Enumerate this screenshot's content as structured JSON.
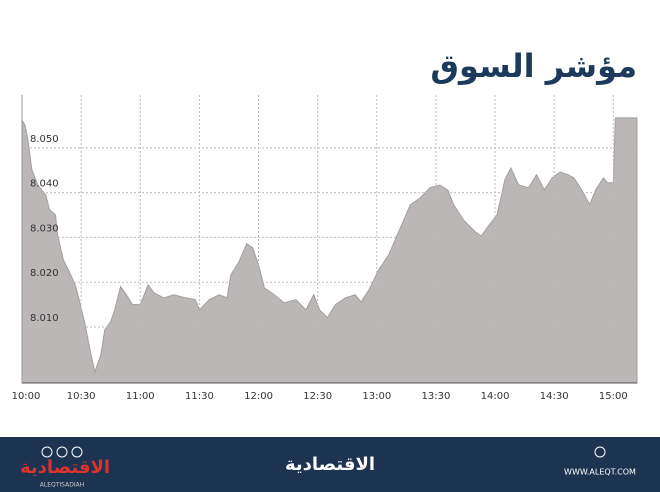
{
  "chart_data": {
    "type": "area",
    "title": "مؤشر السوق",
    "x": [
      600,
      601.5,
      603,
      605,
      608,
      612,
      614,
      617,
      618,
      621,
      624,
      627,
      629,
      632,
      635,
      637,
      640,
      642,
      645,
      647,
      650,
      653,
      656,
      660,
      664,
      667,
      672,
      677,
      683,
      688,
      690,
      695,
      700,
      704,
      706,
      710,
      714,
      717,
      720,
      723,
      728,
      733,
      739,
      744,
      748,
      751,
      755,
      759,
      764,
      769,
      772,
      776,
      781,
      786,
      791,
      797,
      802,
      807,
      812,
      816,
      819,
      824,
      830,
      833,
      837,
      841,
      845,
      848,
      852,
      857,
      861,
      865,
      869,
      873,
      877,
      880,
      884,
      888,
      891,
      895,
      897,
      900,
      901,
      912
    ],
    "values": [
      8.0562,
      8.0551,
      8.0518,
      8.0451,
      8.0417,
      8.0395,
      8.0362,
      8.035,
      8.0306,
      8.025,
      8.0223,
      8.0194,
      8.0161,
      8.0105,
      8.0038,
      8.0,
      8.0038,
      8.0094,
      8.0112,
      8.0138,
      8.019,
      8.0172,
      8.015,
      8.015,
      8.0194,
      8.0176,
      8.0165,
      8.0172,
      8.0165,
      8.0161,
      8.0138,
      8.0161,
      8.0172,
      8.0165,
      8.0217,
      8.0245,
      8.0286,
      8.0277,
      8.0239,
      8.0187,
      8.0172,
      8.0154,
      8.0161,
      8.0138,
      8.0172,
      8.0138,
      8.0121,
      8.015,
      8.0165,
      8.0172,
      8.0156,
      8.0183,
      8.0228,
      8.0261,
      8.0312,
      8.0373,
      8.0388,
      8.0411,
      8.0417,
      8.0406,
      8.0373,
      8.0339,
      8.0312,
      8.0303,
      8.0328,
      8.035,
      8.0429,
      8.0455,
      8.0417,
      8.0411,
      8.044,
      8.0406,
      8.0433,
      8.0446,
      8.044,
      8.0433,
      8.0406,
      8.0373,
      8.0406,
      8.0433,
      8.0422,
      8.0422,
      8.0567,
      8.0567
    ],
    "color": "#bcb7b7",
    "xlim": [
      600,
      912
    ],
    "xticks": [
      {
        "value": 600,
        "label": "10:00"
      },
      {
        "value": 630,
        "label": "10:30"
      },
      {
        "value": 660,
        "label": "11:00"
      },
      {
        "value": 690,
        "label": "11:30"
      },
      {
        "value": 720,
        "label": "12:00"
      },
      {
        "value": 750,
        "label": "12:30"
      },
      {
        "value": 780,
        "label": "13:00"
      },
      {
        "value": 810,
        "label": "13:30"
      },
      {
        "value": 840,
        "label": "14:00"
      },
      {
        "value": 870,
        "label": "14:30"
      },
      {
        "value": 900,
        "label": "15:00"
      }
    ],
    "ylim": [
      7.9975,
      8.0618
    ],
    "yticks": [
      {
        "value": 8.01,
        "label": "8.010"
      },
      {
        "value": 8.02,
        "label": "8.020"
      },
      {
        "value": 8.03,
        "label": "8.030"
      },
      {
        "value": 8.04,
        "label": "8.040"
      },
      {
        "value": 8.05,
        "label": "8.050"
      }
    ],
    "grid": true
  },
  "footer": {
    "logo_left": "الاقتصادية",
    "logo_left_sub": "ALEQTISADIAH",
    "logo_center": "الاقتصادية",
    "website": "WWW.ALEQT.COM"
  }
}
